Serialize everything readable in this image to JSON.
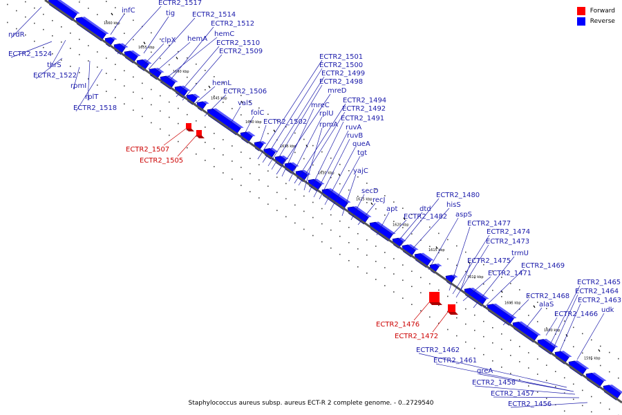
{
  "colors": {
    "forward": "#ff0000",
    "reverse": "#0000ff",
    "backbone": "#555555",
    "label_forward": "#cc0000",
    "label_reverse": "#1a1aaa"
  },
  "legend": [
    {
      "label": "Forward",
      "color": "#ff0000"
    },
    {
      "label": "Reverse",
      "color": "#0000ff"
    }
  ],
  "caption": "Staphylococcus aureus subsp. aureus ECT-R 2 complete genome. - 0..2729540",
  "kbp_ticks": [
    "1660 kbp",
    "1655 kbp",
    "1650 kbp",
    "1645 kbp",
    "1640 kbp",
    "1635 kbp",
    "1630 kbp",
    "1625 kbp",
    "1620 kbp",
    "1615 kbp",
    "1610 kbp",
    "1605 kbp",
    "1600 kbp",
    "1595 kbp"
  ],
  "reverse_labels": [
    "nrdR",
    "ECTR2_1524",
    "thrS",
    "ECTR2_1522",
    "rpmI",
    "rplT",
    "ECTR2_1518",
    "infC",
    "ECTR2_1517",
    "tig",
    "ECTR2_1514",
    "ECTR2_1512",
    "clpX",
    "hemA",
    "hemC",
    "ECTR2_1510",
    "ECTR2_1509",
    "hemL",
    "ECTR2_1506",
    "valS",
    "folC",
    "ECTR2_1502",
    "ECTR2_1501",
    "ECTR2_1500",
    "ECTR2_1499",
    "ECTR2_1498",
    "mreD",
    "mreC",
    "rplU",
    "ECTR2_1494",
    "ECTR2_1492",
    "rpmA",
    "ECTR2_1491",
    "ruvA",
    "ruvB",
    "queA",
    "tgt",
    "yajC",
    "secD",
    "recJ",
    "apt",
    "dtd",
    "ECTR2_1482",
    "ECTR2_1480",
    "hisS",
    "aspS",
    "ECTR2_1477",
    "ECTR2_1474",
    "ECTR2_1473",
    "trmU",
    "ECTR2_1475",
    "ECTR2_1471",
    "ECTR2_1469",
    "ECTR2_1468",
    "alaS",
    "ECTR2_1466",
    "ECTR2_1465",
    "ECTR2_1464",
    "ECTR2_1463",
    "udk",
    "ECTR2_1462",
    "ECTR2_1461",
    "greA",
    "ECTR2_1458",
    "ECTR2_1457",
    "ECTR2_1456"
  ],
  "forward_labels": [
    "ECTR2_1507",
    "ECTR2_1505",
    "ECTR2_1476",
    "ECTR2_1472"
  ]
}
